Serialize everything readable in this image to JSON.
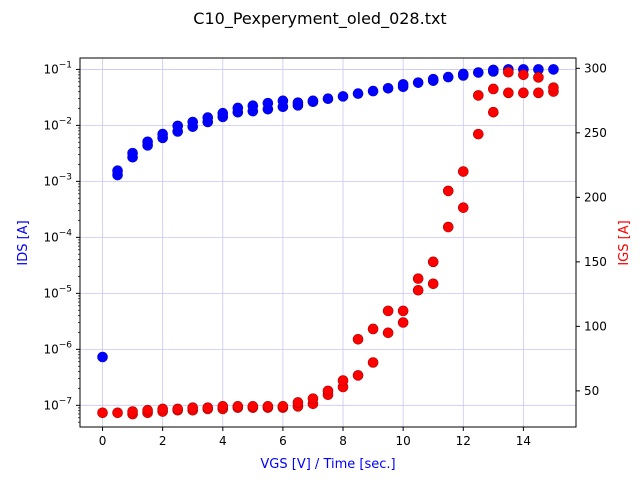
{
  "chart_data": {
    "type": "scatter",
    "title": "C10_Pexperyment_oled_028.txt",
    "xlabel": "VGS [V] / Time [sec.]",
    "ylabel_left": "IDS [A]",
    "ylabel_right": "IGS [A]",
    "x_ticks": [
      0,
      2,
      4,
      6,
      8,
      10,
      12,
      14
    ],
    "x_range": [
      -0.75,
      15.75
    ],
    "left_axis": {
      "scale": "log",
      "range": [
        4.1e-08,
        0.16
      ],
      "ticks": [
        {
          "value": 1e-07,
          "label": "10",
          "exp": "−7"
        },
        {
          "value": 1e-06,
          "label": "10",
          "exp": "−6"
        },
        {
          "value": 1e-05,
          "label": "10",
          "exp": "−5"
        },
        {
          "value": 0.0001,
          "label": "10",
          "exp": "−4"
        },
        {
          "value": 0.001,
          "label": "10",
          "exp": "−3"
        },
        {
          "value": 0.01,
          "label": "10",
          "exp": "−2"
        },
        {
          "value": 0.1,
          "label": "10",
          "exp": "−1"
        }
      ]
    },
    "right_axis": {
      "scale": "linear",
      "range": [
        22,
        308
      ],
      "ticks": [
        50,
        100,
        150,
        200,
        250,
        300
      ]
    },
    "grid": true,
    "series": [
      {
        "axis": "left",
        "color": "#0000ff",
        "x": [
          0,
          0.5,
          0.5,
          1,
          1,
          1.5,
          1.5,
          2,
          2,
          2.5,
          2.5,
          3,
          3,
          3.5,
          3.5,
          4,
          4,
          4.5,
          4.5,
          5,
          5,
          5.5,
          5.5,
          6,
          6,
          6.5,
          6.5,
          7,
          7,
          7.5,
          8,
          8.5,
          9,
          9.5,
          10,
          10,
          10.5,
          11,
          11,
          11.5,
          12,
          12,
          12.5,
          13,
          13,
          13.5,
          14,
          14.5,
          15
        ],
        "y": [
          7.3e-07,
          0.0013,
          0.00155,
          0.0027,
          0.0032,
          0.0044,
          0.0051,
          0.006,
          0.007,
          0.0078,
          0.0098,
          0.0095,
          0.0115,
          0.0115,
          0.0138,
          0.0142,
          0.0165,
          0.0172,
          0.0205,
          0.018,
          0.0225,
          0.0195,
          0.025,
          0.0215,
          0.0275,
          0.0228,
          0.0255,
          0.0265,
          0.0275,
          0.03,
          0.033,
          0.037,
          0.041,
          0.046,
          0.049,
          0.054,
          0.058,
          0.063,
          0.067,
          0.073,
          0.078,
          0.083,
          0.088,
          0.092,
          0.098,
          0.1,
          0.1,
          0.1,
          0.1
        ]
      },
      {
        "axis": "right",
        "color": "#ff0000",
        "x": [
          0,
          0.5,
          1,
          1,
          1.5,
          1.5,
          2,
          2,
          2.5,
          2.5,
          3,
          3,
          3.5,
          3.5,
          4,
          4,
          4.5,
          4.5,
          5,
          5,
          5.5,
          5.5,
          6,
          6,
          6.5,
          6.5,
          7,
          7,
          7.5,
          7.5,
          8,
          8,
          8.5,
          8.5,
          9,
          9,
          9.5,
          9.5,
          10,
          10,
          10.5,
          10.5,
          11,
          11,
          11.5,
          11.5,
          12,
          12,
          12.5,
          12.5,
          13,
          13,
          13.5,
          13.5,
          14,
          14,
          14.5,
          14.5,
          15,
          15
        ],
        "y": [
          33,
          33,
          32,
          34,
          33,
          35,
          34,
          36,
          35,
          36,
          35,
          37,
          36,
          37,
          36,
          38,
          37,
          38,
          37,
          38,
          37,
          38,
          37,
          38,
          38,
          41,
          40,
          44,
          47,
          50,
          53,
          58,
          62,
          90,
          72,
          98,
          95,
          112,
          103,
          112,
          128,
          137,
          133,
          150,
          177,
          205,
          192,
          220,
          249,
          279,
          266,
          284,
          281,
          297,
          281,
          295,
          281,
          293,
          282,
          285
        ]
      }
    ]
  }
}
